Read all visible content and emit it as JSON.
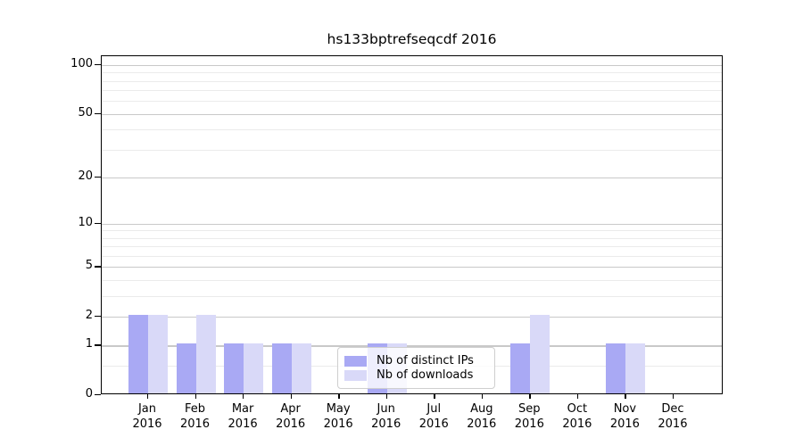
{
  "chart_data": {
    "type": "bar",
    "title": "hs133bptrefseqcdf 2016",
    "xlabel": "",
    "ylabel": "",
    "categories": [
      "Jan",
      "Feb",
      "Mar",
      "Apr",
      "May",
      "Jun",
      "Jul",
      "Aug",
      "Sep",
      "Oct",
      "Nov",
      "Dec"
    ],
    "x_tick_year": "2016",
    "series": [
      {
        "name": "Nb of distinct IPs",
        "color": "#a9a9f4",
        "values": [
          2,
          1,
          1,
          1,
          0,
          1,
          0,
          0,
          1,
          0,
          1,
          0
        ]
      },
      {
        "name": "Nb of downloads",
        "color": "#d9d9f8",
        "values": [
          2,
          2,
          1,
          1,
          0,
          1,
          0,
          0,
          2,
          0,
          1,
          0
        ]
      }
    ],
    "y_axis": {
      "scale": "log1p",
      "ticks": [
        0,
        1,
        2,
        5,
        10,
        20,
        50,
        100
      ],
      "minor_gridlines": [
        0.5,
        3,
        4,
        6,
        7,
        8,
        9,
        30,
        40,
        60,
        70,
        80,
        90
      ],
      "range": [
        0,
        113
      ]
    },
    "grid": true,
    "legend": {
      "position": "lower center"
    }
  }
}
